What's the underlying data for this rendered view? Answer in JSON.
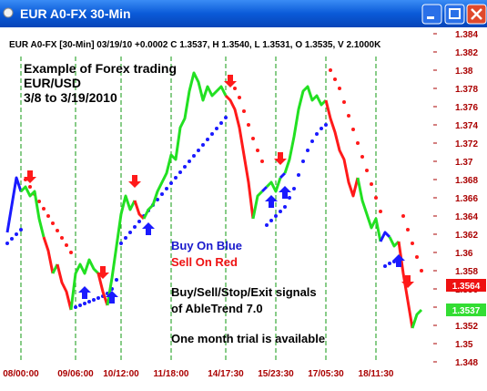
{
  "window": {
    "title": "EUR A0-FX 30-Min"
  },
  "chart_data": {
    "type": "line",
    "title": "EUR A0-FX [30-Min] 03/19/10 +0.0002 C 1.3537, H 1.3540, L 1.3531, O 1.3535, V 2.1000K",
    "annotations": [
      {
        "text": "Example of Forex trading",
        "color": "#000000"
      },
      {
        "text": "EUR/USD",
        "color": "#000000"
      },
      {
        "text": "3/8 to 3/19/2010",
        "color": "#000000"
      },
      {
        "text": "Buy On Blue",
        "color": "#1a1acc"
      },
      {
        "text": "Sell On Red",
        "color": "#ee1111"
      },
      {
        "text": "Buy/Sell/Stop/Exit signals",
        "color": "#000000"
      },
      {
        "text": "of AbleTrend 7.0",
        "color": "#000000"
      },
      {
        "text": "One month trial is available",
        "color": "#000000"
      }
    ],
    "categories": [
      null,
      null,
      null,
      "08/00:00",
      null,
      null,
      null,
      null,
      null,
      null,
      null,
      null,
      null,
      null,
      null,
      "09/06:00",
      null,
      null,
      null,
      null,
      null,
      null,
      null,
      null,
      null,
      "10/12:00",
      null,
      null,
      null,
      null,
      null,
      null,
      null,
      null,
      null,
      null,
      "11/18:00",
      null,
      null,
      null,
      null,
      null,
      null,
      null,
      null,
      null,
      null,
      null,
      "14/17:30",
      null,
      null,
      null,
      null,
      null,
      null,
      null,
      null,
      null,
      null,
      "15/23:30",
      null,
      null,
      null,
      null,
      null,
      null,
      null,
      null,
      null,
      null,
      "17/05:30",
      null,
      null,
      null,
      null,
      null,
      null,
      null,
      null,
      null,
      null,
      "18/11:30",
      null,
      null,
      null,
      null,
      null,
      null,
      null,
      null,
      null,
      null
    ],
    "colors": [
      "#1a1aff",
      "#22e022",
      "#ff1a1a"
    ],
    "values": [
      1.3622,
      1.3652,
      1.3682,
      1.3667,
      1.3672,
      1.3662,
      1.3667,
      1.3637,
      1.3617,
      1.3602,
      1.3577,
      1.3587,
      1.3567,
      1.3557,
      1.3537,
      1.3577,
      1.3587,
      1.3577,
      1.3592,
      1.3582,
      1.3577,
      1.3557,
      1.3542,
      1.3572,
      1.3607,
      1.3642,
      1.3662,
      1.3647,
      1.3657,
      1.3642,
      1.3637,
      1.3647,
      1.3652,
      1.3667,
      1.3677,
      1.3687,
      1.3707,
      1.3702,
      1.3737,
      1.3747,
      1.3777,
      1.3797,
      1.3787,
      1.3767,
      1.3782,
      1.3772,
      1.3777,
      1.3782,
      1.3772,
      1.3767,
      1.3757,
      1.3737,
      1.3707,
      1.3677,
      1.3637,
      1.3662,
      1.3667,
      1.3672,
      1.3677,
      1.3667,
      1.3682,
      1.3687,
      1.3702,
      1.3727,
      1.3757,
      1.3777,
      1.3782,
      1.3767,
      1.3772,
      1.3762,
      1.3767,
      1.3747,
      1.3732,
      1.3712,
      1.3702,
      1.3677,
      1.3662,
      1.3682,
      1.3657,
      1.3642,
      1.3627,
      1.3637,
      1.3612,
      1.3622,
      1.3617,
      1.3607,
      1.3612,
      1.3577,
      1.3547,
      1.3517,
      1.3532,
      1.3537
    ],
    "color_index": [
      0,
      0,
      0,
      0,
      1,
      1,
      1,
      1,
      1,
      2,
      2,
      1,
      2,
      2,
      2,
      1,
      1,
      1,
      1,
      1,
      1,
      2,
      2,
      1,
      1,
      1,
      1,
      1,
      1,
      2,
      2,
      1,
      1,
      1,
      1,
      1,
      1,
      1,
      1,
      1,
      1,
      1,
      1,
      1,
      1,
      1,
      1,
      1,
      1,
      2,
      2,
      2,
      2,
      2,
      2,
      1,
      1,
      0,
      1,
      1,
      1,
      0,
      1,
      1,
      1,
      1,
      1,
      1,
      1,
      1,
      1,
      2,
      2,
      2,
      2,
      2,
      2,
      2,
      1,
      1,
      1,
      1,
      1,
      0,
      0,
      1,
      1,
      2,
      2,
      2,
      1,
      1
    ],
    "stops": [
      1.361,
      1.3615,
      1.362,
      1.3625,
      1.368,
      1.3672,
      1.3664,
      1.3656,
      1.3648,
      1.364,
      1.3632,
      1.3624,
      1.3616,
      1.3608,
      1.36,
      1.354,
      1.3542,
      1.3544,
      1.3546,
      1.3548,
      1.355,
      1.3552,
      1.3555,
      1.356,
      1.357,
      1.361,
      1.3616,
      1.3622,
      1.3628,
      1.3634,
      1.364,
      1.3646,
      1.3652,
      1.3658,
      1.3664,
      1.367,
      1.3676,
      1.3682,
      1.3688,
      1.3694,
      1.37,
      1.3706,
      1.3712,
      1.3718,
      1.3724,
      1.373,
      1.3736,
      1.3742,
      1.3748,
      1.379,
      1.378,
      1.377,
      1.3755,
      1.374,
      1.3725,
      1.3712,
      1.37,
      1.363,
      1.3635,
      1.364,
      1.3645,
      1.365,
      1.366,
      1.367,
      1.3685,
      1.37,
      1.3712,
      1.3722,
      1.373,
      1.3736,
      1.374,
      1.38,
      1.379,
      1.378,
      1.3765,
      1.375,
      1.3735,
      1.372,
      1.3705,
      1.369,
      1.3675,
      1.366,
      1.3645,
      1.3585,
      1.3588,
      1.359,
      1.3592,
      1.364,
      1.3625,
      1.361,
      1.3595,
      1.358
    ],
    "stop_color_index": [
      0,
      0,
      0,
      0,
      2,
      2,
      2,
      2,
      2,
      2,
      2,
      2,
      2,
      2,
      2,
      0,
      0,
      0,
      0,
      0,
      0,
      0,
      0,
      0,
      0,
      0,
      0,
      0,
      0,
      0,
      0,
      0,
      0,
      0,
      0,
      0,
      0,
      0,
      0,
      0,
      0,
      0,
      0,
      0,
      0,
      0,
      0,
      0,
      0,
      2,
      2,
      2,
      2,
      2,
      2,
      2,
      2,
      0,
      0,
      0,
      0,
      0,
      0,
      0,
      0,
      0,
      0,
      0,
      0,
      0,
      0,
      2,
      2,
      2,
      2,
      2,
      2,
      2,
      2,
      2,
      2,
      2,
      2,
      0,
      0,
      0,
      0,
      2,
      2,
      2,
      2,
      2
    ],
    "buy_signals": [
      17,
      23,
      31,
      58,
      61,
      86
    ],
    "sell_signals": [
      5,
      21,
      28,
      49,
      60,
      88
    ],
    "price_markers": [
      {
        "value": 1.3564,
        "color": "#ee1111"
      },
      {
        "value": 1.3537,
        "color": "#33dd33"
      }
    ],
    "ylim": [
      1.348,
      1.384
    ],
    "yticks": [
      1.348,
      1.35,
      1.352,
      1.354,
      1.356,
      1.358,
      1.36,
      1.362,
      1.364,
      1.366,
      1.368,
      1.37,
      1.372,
      1.374,
      1.376,
      1.378,
      1.38,
      1.382,
      1.384
    ],
    "grid": true,
    "grid_color": "#119911"
  }
}
